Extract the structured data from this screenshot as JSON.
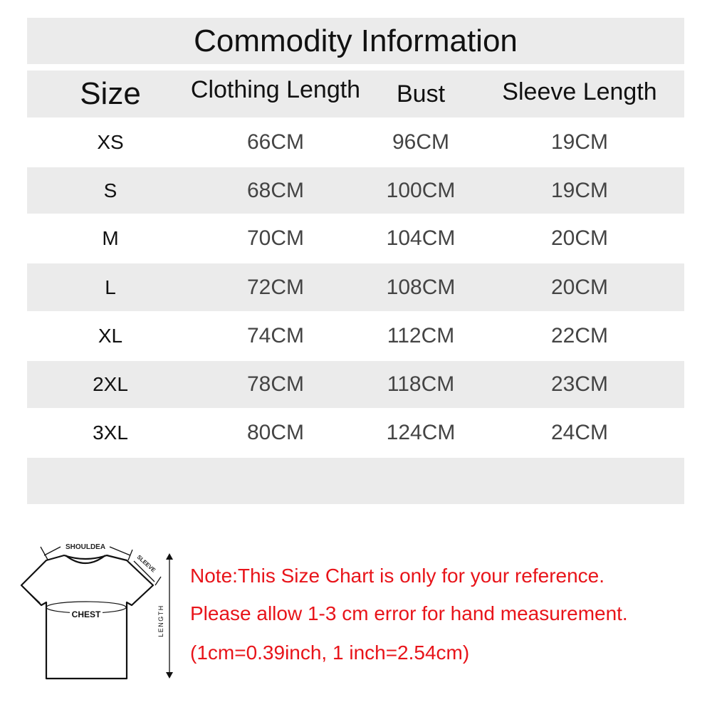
{
  "title": "Commodity Information",
  "headers": [
    "Size",
    "Clothing Length",
    "Bust",
    "Sleeve Length"
  ],
  "rows": [
    [
      "XS",
      "66CM",
      "96CM",
      "19CM"
    ],
    [
      "S",
      "68CM",
      "100CM",
      "19CM"
    ],
    [
      "M",
      "70CM",
      "104CM",
      "20CM"
    ],
    [
      "L",
      "72CM",
      "108CM",
      "20CM"
    ],
    [
      "XL",
      "74CM",
      "112CM",
      "22CM"
    ],
    [
      "2XL",
      "78CM",
      "118CM",
      "23CM"
    ],
    [
      "3XL",
      "80CM",
      "124CM",
      "24CM"
    ]
  ],
  "diagram": {
    "shoulder": "SHOULDEA",
    "sleeve": "SLEEVE",
    "chest": "CHEST",
    "length": "LENGTH"
  },
  "notes": [
    "Note:This Size Chart is only for your reference.",
    " Please allow 1-3 cm error for hand measurement.",
    "(1cm=0.39inch, 1 inch=2.54cm)"
  ],
  "colors": {
    "band": "#ebebeb",
    "note": "#e8141a",
    "value_text": "#444444"
  }
}
